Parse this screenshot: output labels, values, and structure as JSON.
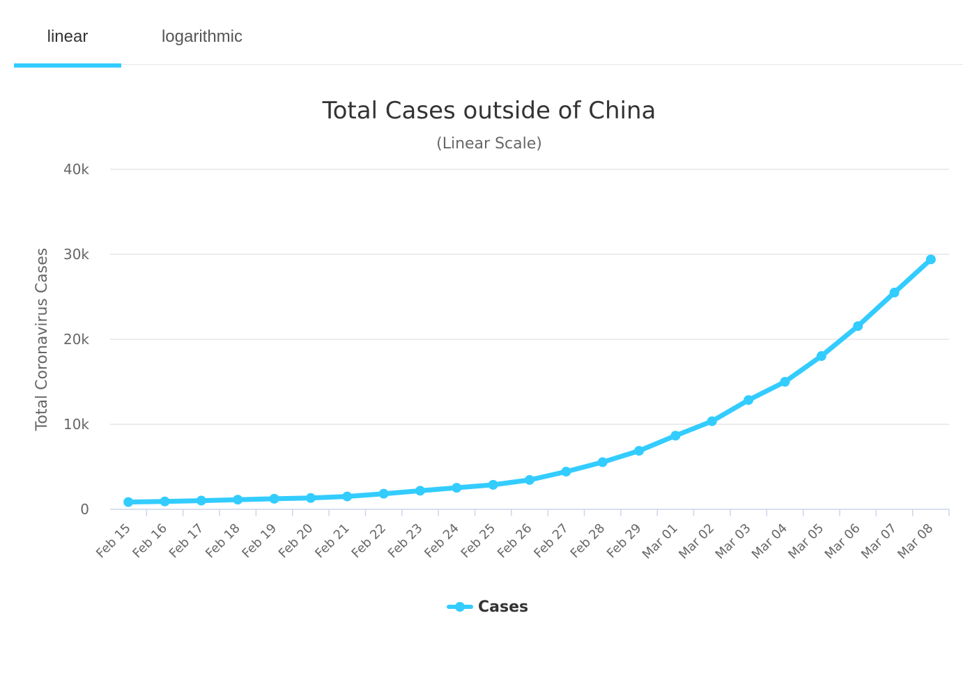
{
  "tabs": [
    {
      "label": "linear",
      "active": true
    },
    {
      "label": "logarithmic",
      "active": false
    }
  ],
  "accent_color": "#33ccff",
  "chart_data": {
    "type": "line",
    "title": "Total Cases outside of China",
    "subtitle": "(Linear Scale)",
    "xlabel": "",
    "ylabel": "Total Coronavirus Cases",
    "categories": [
      "Feb 15",
      "Feb 16",
      "Feb 17",
      "Feb 18",
      "Feb 19",
      "Feb 20",
      "Feb 21",
      "Feb 22",
      "Feb 23",
      "Feb 24",
      "Feb 25",
      "Feb 26",
      "Feb 27",
      "Feb 28",
      "Feb 29",
      "Mar 01",
      "Mar 02",
      "Mar 03",
      "Mar 04",
      "Mar 05",
      "Mar 06",
      "Mar 07",
      "Mar 08"
    ],
    "series": [
      {
        "name": "Cases",
        "color": "#33ccff",
        "values": [
          850,
          920,
          1020,
          1130,
          1240,
          1330,
          1510,
          1830,
          2180,
          2530,
          2880,
          3450,
          4430,
          5540,
          6880,
          8660,
          10360,
          12850,
          15000,
          18030,
          21550,
          25500,
          29400
        ]
      }
    ],
    "ylim": [
      0,
      40000
    ],
    "y_ticks": [
      0,
      10000,
      20000,
      30000,
      40000
    ],
    "y_tick_labels": [
      "0",
      "10k",
      "20k",
      "30k",
      "40k"
    ],
    "grid": true,
    "legend_position": "bottom-center"
  }
}
